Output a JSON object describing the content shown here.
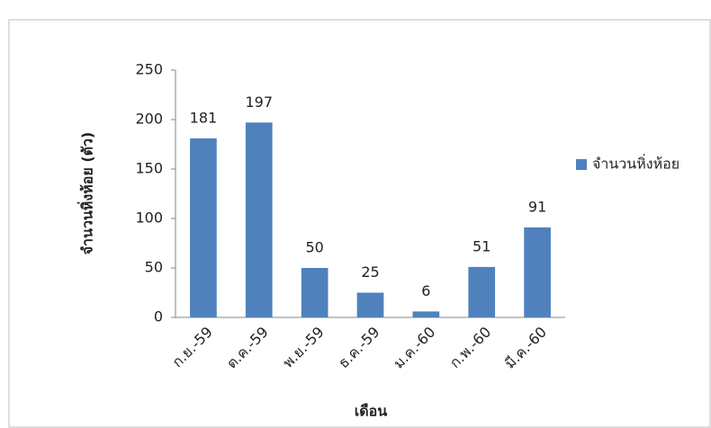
{
  "chart_data": {
    "type": "bar",
    "x_label": "เดือน",
    "y_label": "จำนวนหิ่งห้อย (ตัว)",
    "categories": [
      "ก.ย.-59",
      "ต.ค.-59",
      "พ.ย.-59",
      "ธ.ค.-59",
      "ม.ค.-60",
      "ก.พ.-60",
      "มี.ค.-60"
    ],
    "series": [
      {
        "name": "จำนวนหิ่งห้อย",
        "color": "#4f81bd",
        "values": [
          181,
          197,
          50,
          25,
          6,
          51,
          91
        ]
      }
    ],
    "ylim": [
      0,
      250
    ],
    "yticks": [
      0,
      50,
      100,
      150,
      200,
      250
    ],
    "grid": false,
    "legend": "right"
  }
}
